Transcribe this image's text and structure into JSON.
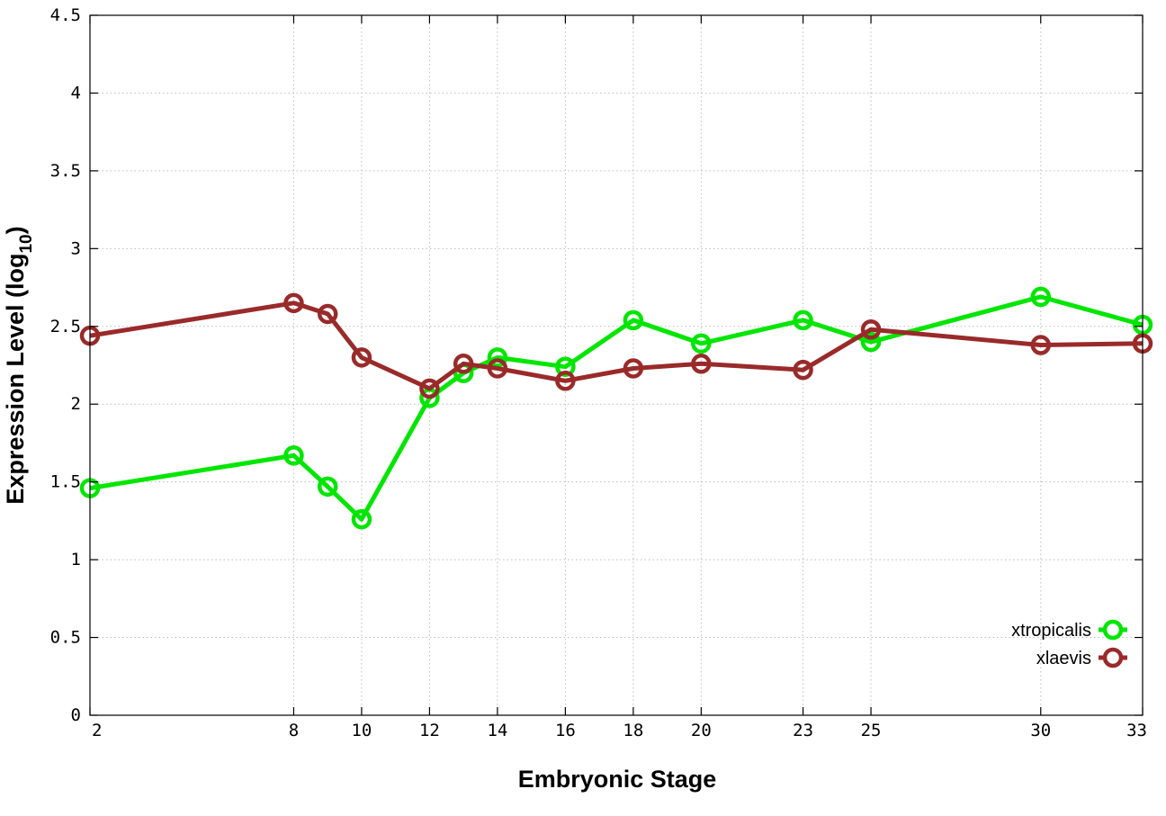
{
  "chart_data": {
    "type": "line",
    "title": "",
    "xlabel": "Embryonic Stage",
    "ylabel": "Expression Level (log",
    "ylabel_sub": "10",
    "ylabel_close": ")",
    "xlim": [
      2,
      33
    ],
    "ylim": [
      0,
      4.5
    ],
    "x_ticks": [
      2,
      8,
      10,
      12,
      14,
      16,
      18,
      20,
      23,
      25,
      30,
      33
    ],
    "y_ticks": [
      0,
      0.5,
      1,
      1.5,
      2,
      2.5,
      3,
      3.5,
      4,
      4.5
    ],
    "y_tick_labels": [
      "0",
      "0.5",
      "1",
      "1.5",
      "2",
      "2.5",
      "3",
      "3.5",
      "4",
      "4.5"
    ],
    "grid": true,
    "legend_position": "bottom-right",
    "x": [
      2,
      8,
      9,
      10,
      12,
      13,
      14,
      16,
      18,
      20,
      23,
      25,
      30,
      33
    ],
    "series": [
      {
        "name": "xtropicalis",
        "color": "#00e600",
        "values": [
          1.46,
          1.67,
          1.47,
          1.26,
          2.04,
          2.2,
          2.3,
          2.24,
          2.54,
          2.39,
          2.54,
          2.4,
          2.69,
          2.51
        ]
      },
      {
        "name": "xlaevis",
        "color": "#9a2a2a",
        "values": [
          2.44,
          2.65,
          2.58,
          2.3,
          2.1,
          2.26,
          2.23,
          2.15,
          2.23,
          2.26,
          2.22,
          2.48,
          2.38,
          2.39
        ]
      }
    ]
  }
}
